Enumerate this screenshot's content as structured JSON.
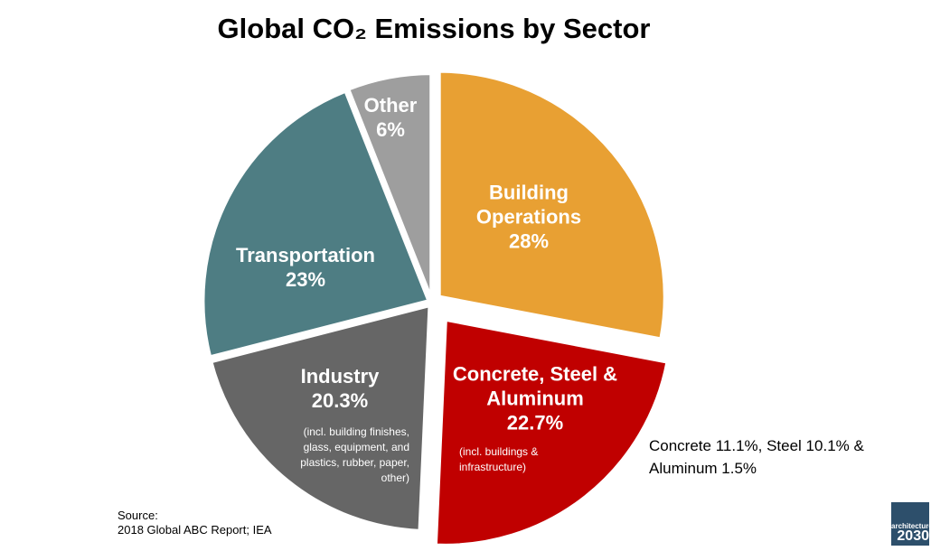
{
  "chart_data": {
    "type": "pie",
    "title": "Global CO₂ Emissions by Sector",
    "categories": [
      "Building Operations",
      "Concrete, Steel & Aluminum",
      "Industry",
      "Transportation",
      "Other"
    ],
    "values": [
      28,
      22.7,
      20.3,
      23,
      6
    ],
    "value_labels": [
      "28%",
      "22.7%",
      "20.3%",
      "23%",
      "6%"
    ],
    "colors": [
      "#e8a033",
      "#c00000",
      "#666666",
      "#4e7d83",
      "#9e9e9e"
    ],
    "annotations": [
      "(incl. buildings & infrastructure)",
      "(incl. building finishes, glass, equipment, and plastics, rubber, paper, other)",
      "Concrete 11.1%, Steel 10.1% & Aluminum 1.5%"
    ],
    "source": [
      "Source:",
      "2018 Global ABC Report; IEA"
    ],
    "logo": [
      "architecture",
      "2030"
    ]
  }
}
